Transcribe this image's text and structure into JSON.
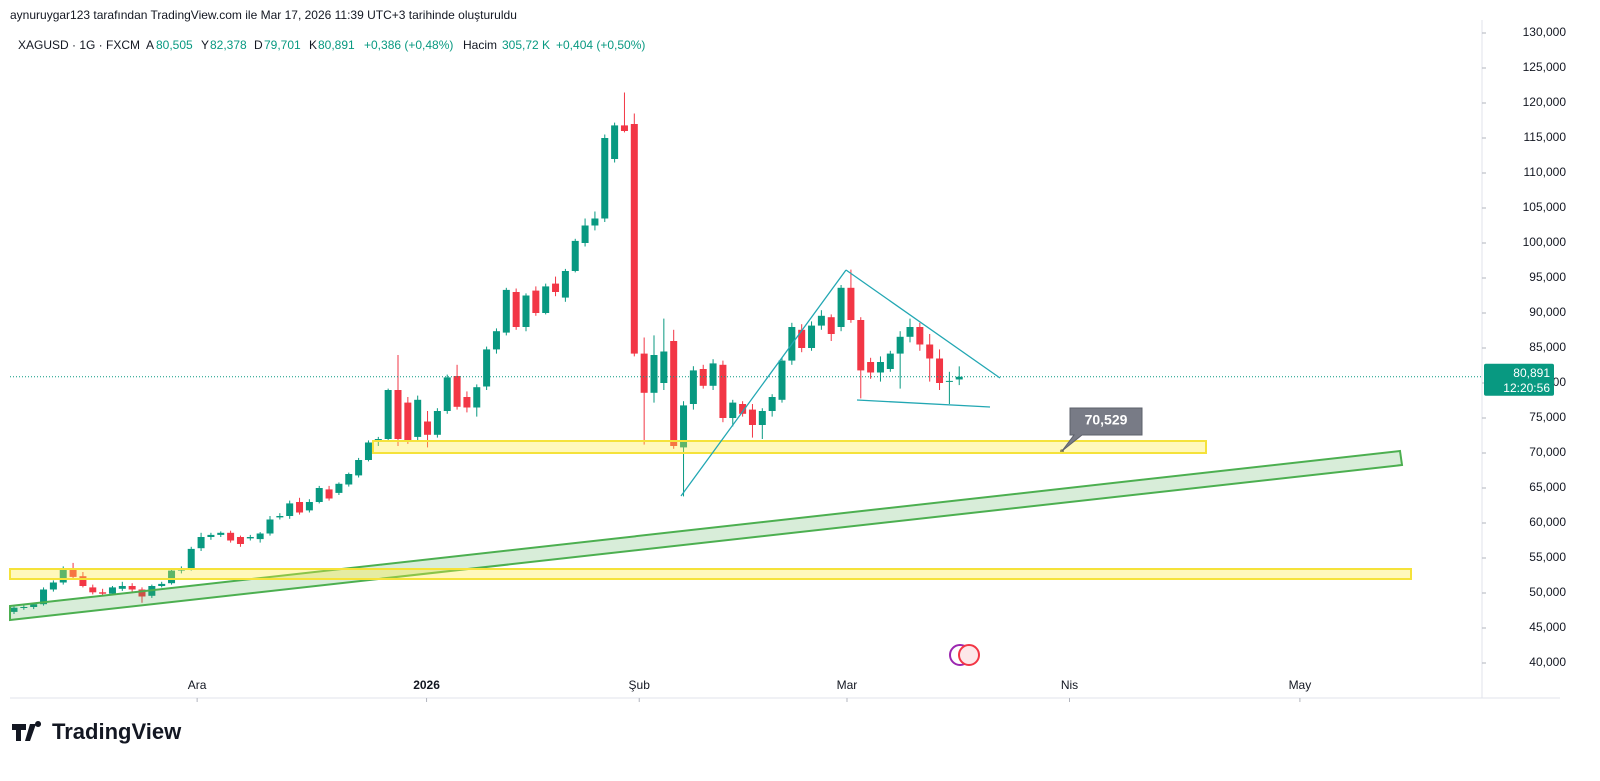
{
  "header": {
    "caption": "aynuruygar123 tarafından TradingView.com ile Mar 17, 2026 11:39 UTC+3 tarihinde oluşturuldu"
  },
  "legend": {
    "symbol": "XAGUSD · 1G · FXCM",
    "open_key": "A",
    "open": "80,505",
    "high_key": "Y",
    "high": "82,378",
    "low_key": "D",
    "low": "79,701",
    "close_key": "K",
    "close": "80,891",
    "change": "+0,386 (+0,48%)",
    "volume_key": "Hacim",
    "volume": "305,72 K",
    "volume_change": "+0,404 (+0,50%)"
  },
  "chart_data": {
    "type": "candlestick",
    "up_color": "#089981",
    "down_color": "#f23645",
    "open": [
      47.3,
      47.9,
      48.0,
      48.4,
      50.5,
      51.5,
      53.5,
      52.4,
      50.8,
      50.1,
      49.9,
      50.6,
      51.0,
      50.5,
      49.6,
      51.0,
      51.4,
      53.2,
      53.4,
      56.4,
      58.0,
      58.3,
      58.6,
      58.0,
      57.8,
      57.7,
      58.5,
      60.8,
      61.0,
      63.0,
      61.8,
      63.0,
      64.8,
      64.3,
      65.5,
      66.8,
      69.0,
      71.6,
      72.0,
      79.0,
      77.2,
      72.3,
      74.5,
      72.6,
      76.0,
      81.0,
      78.0,
      76.5,
      79.5,
      84.8,
      87.2,
      93.0,
      88.0,
      93.2,
      90.0,
      94.2,
      92.2,
      96.0,
      100.0,
      102.5,
      103.5,
      112.0,
      116.8,
      117.0,
      84.2,
      78.6,
      80.0,
      86.0,
      70.8,
      77.0,
      82.0,
      79.6,
      82.6,
      75.0,
      77.0,
      76.2,
      74.0,
      76.0,
      77.6,
      83.2,
      87.6,
      85.0,
      88.2,
      89.4,
      88.0,
      93.6,
      89.0,
      83.0,
      81.5,
      82.0,
      84.2,
      86.6,
      88.0,
      85.5,
      83.5,
      80.2,
      80.505
    ],
    "high": [
      48.1,
      48.3,
      48.6,
      50.8,
      51.8,
      53.8,
      54.3,
      53.0,
      51.2,
      50.6,
      51.0,
      51.6,
      51.4,
      50.8,
      51.2,
      51.6,
      53.4,
      53.8,
      56.6,
      58.6,
      58.6,
      58.8,
      58.9,
      58.2,
      58.3,
      58.7,
      61.0,
      61.4,
      63.2,
      63.6,
      63.4,
      65.3,
      65.3,
      65.8,
      67.2,
      69.3,
      71.8,
      72.3,
      79.2,
      84.0,
      78.0,
      78.2,
      76.0,
      76.4,
      81.2,
      82.6,
      78.8,
      79.8,
      85.2,
      87.8,
      93.6,
      93.5,
      92.8,
      93.8,
      94.2,
      95.2,
      96.3,
      100.6,
      103.5,
      104.5,
      115.5,
      117.2,
      121.5,
      118.5,
      86.5,
      86.8,
      89.2,
      87.6,
      77.4,
      82.4,
      82.6,
      83.4,
      83.2,
      77.6,
      77.4,
      77.0,
      76.4,
      78.4,
      83.6,
      88.6,
      88.4,
      88.8,
      90.4,
      89.8,
      94.0,
      96.2,
      89.4,
      83.6,
      83.8,
      84.6,
      87.4,
      89.2,
      88.6,
      87.0,
      84.8,
      81.6,
      82.378
    ],
    "low": [
      47.0,
      47.6,
      47.7,
      48.2,
      50.2,
      51.2,
      52.0,
      50.8,
      49.8,
      49.6,
      49.7,
      50.3,
      50.2,
      48.6,
      49.3,
      50.8,
      51.2,
      52.8,
      53.2,
      56.0,
      57.6,
      58.0,
      57.2,
      56.6,
      57.5,
      57.2,
      58.2,
      60.5,
      60.6,
      61.2,
      61.5,
      62.8,
      63.2,
      64.0,
      65.2,
      66.5,
      68.8,
      71.0,
      71.8,
      71.0,
      71.3,
      71.8,
      70.8,
      72.2,
      75.6,
      76.2,
      75.8,
      75.2,
      79.0,
      84.2,
      86.8,
      87.6,
      87.4,
      89.6,
      89.8,
      92.4,
      91.6,
      95.8,
      99.5,
      101.8,
      103.0,
      111.5,
      115.8,
      83.8,
      71.2,
      77.2,
      79.0,
      70.6,
      63.8,
      76.2,
      79.2,
      79.0,
      74.4,
      73.8,
      75.2,
      72.2,
      72.0,
      75.2,
      77.2,
      82.6,
      84.4,
      84.6,
      87.6,
      86.0,
      87.4,
      88.6,
      77.8,
      80.6,
      80.2,
      81.6,
      79.2,
      85.8,
      84.6,
      80.2,
      79.0,
      77.0,
      79.701
    ],
    "close": [
      47.9,
      48.0,
      48.4,
      50.5,
      51.5,
      53.5,
      52.3,
      51.0,
      50.1,
      49.9,
      50.8,
      51.0,
      50.5,
      49.5,
      51.0,
      51.3,
      53.2,
      53.5,
      56.3,
      58.0,
      58.3,
      58.6,
      57.5,
      57.0,
      58.0,
      58.5,
      60.5,
      61.0,
      62.8,
      61.5,
      63.0,
      65.0,
      63.5,
      65.6,
      67.0,
      69.0,
      71.5,
      72.0,
      79.0,
      72.0,
      71.6,
      77.6,
      72.6,
      76.0,
      80.8,
      76.6,
      76.5,
      79.4,
      84.8,
      87.4,
      93.3,
      88.0,
      92.5,
      90.0,
      93.8,
      93.0,
      96.0,
      100.3,
      102.5,
      103.5,
      115.0,
      116.8,
      116.0,
      84.2,
      78.6,
      84.0,
      84.5,
      71.0,
      76.8,
      81.8,
      79.6,
      82.8,
      75.0,
      77.2,
      75.6,
      74.0,
      76.0,
      78.0,
      83.2,
      88.0,
      85.0,
      88.2,
      89.6,
      87.0,
      93.6,
      89.0,
      81.8,
      81.5,
      83.0,
      84.2,
      86.6,
      88.0,
      85.5,
      83.5,
      80.0,
      80.3,
      80.891
    ],
    "last_price_label": "80,891",
    "countdown": "12:20:56",
    "annotation": {
      "value": 70.529,
      "label": "70,529"
    },
    "xlim": [
      -0.4,
      149.1
    ],
    "xticks": [
      {
        "value": 18.6,
        "label": "Ara"
      },
      {
        "value": 41.9,
        "label": "2026"
      },
      {
        "value": 63.5,
        "label": "Şub"
      },
      {
        "value": 84.6,
        "label": "Mar"
      },
      {
        "value": 107.2,
        "label": "Nis"
      },
      {
        "value": 130.6,
        "label": "May"
      }
    ],
    "ylim": [
      40,
      130
    ],
    "yticks": [
      {
        "value": 40,
        "label": "40,000"
      },
      {
        "value": 45,
        "label": "45,000"
      },
      {
        "value": 50,
        "label": "50,000"
      },
      {
        "value": 55,
        "label": "55,000"
      },
      {
        "value": 60,
        "label": "60,000"
      },
      {
        "value": 65,
        "label": "65,000"
      },
      {
        "value": 70,
        "label": "70,000"
      },
      {
        "value": 75,
        "label": "75,000"
      },
      {
        "value": 80,
        "label": "80,000"
      },
      {
        "value": 85,
        "label": "85,000"
      },
      {
        "value": 90,
        "label": "90,000"
      },
      {
        "value": 95,
        "label": "95,000"
      },
      {
        "value": 100,
        "label": "100,000"
      },
      {
        "value": 105,
        "label": "105,000"
      },
      {
        "value": 110,
        "label": "110,000"
      },
      {
        "value": 115,
        "label": "115,000"
      },
      {
        "value": 120,
        "label": "120,000"
      },
      {
        "value": 125,
        "label": "125,000"
      },
      {
        "value": 130,
        "label": "130,000"
      }
    ]
  },
  "brand": "TradingView"
}
